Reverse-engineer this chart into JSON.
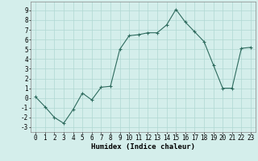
{
  "x": [
    0,
    1,
    2,
    3,
    4,
    5,
    6,
    7,
    8,
    9,
    10,
    11,
    12,
    13,
    14,
    15,
    16,
    17,
    18,
    19,
    20,
    21,
    22,
    23
  ],
  "y": [
    0.1,
    -0.9,
    -2.0,
    -2.6,
    -1.2,
    0.5,
    -0.2,
    1.1,
    1.2,
    5.0,
    6.4,
    6.5,
    6.7,
    6.7,
    7.5,
    9.1,
    7.8,
    6.8,
    5.8,
    3.4,
    1.0,
    1.0,
    5.1,
    5.2
  ],
  "line_color": "#2e6b5e",
  "marker": "+",
  "marker_size": 3,
  "bg_color": "#d4eeeb",
  "grid_color": "#b0d8d2",
  "xlabel": "Humidex (Indice chaleur)",
  "ylim": [
    -3.5,
    9.9
  ],
  "xlim": [
    -0.5,
    23.5
  ],
  "yticks": [
    -3,
    -2,
    -1,
    0,
    1,
    2,
    3,
    4,
    5,
    6,
    7,
    8,
    9
  ],
  "xticks": [
    0,
    1,
    2,
    3,
    4,
    5,
    6,
    7,
    8,
    9,
    10,
    11,
    12,
    13,
    14,
    15,
    16,
    17,
    18,
    19,
    20,
    21,
    22,
    23
  ],
  "axis_fontsize": 6.5,
  "tick_fontsize": 5.5
}
